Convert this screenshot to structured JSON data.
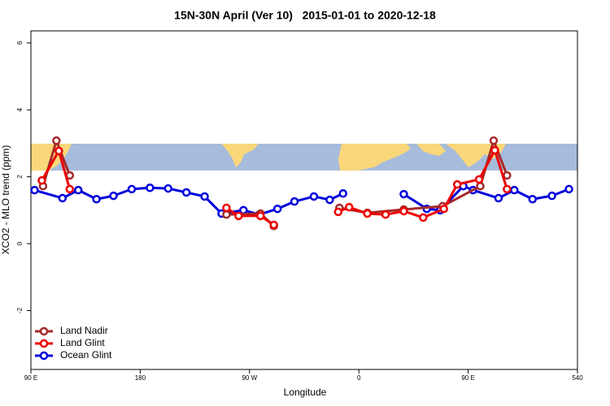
{
  "chart_data": {
    "type": "line",
    "title": "15N-30N April (Ver 10)   2015-01-01 to 2020-12-18",
    "x_label": "Longitude",
    "y_label": "XCO2 - MLO trend (ppm)",
    "xlim": [
      90,
      540
    ],
    "ylim": [
      -3.76,
      6.36
    ],
    "xticks": [
      {
        "value": 90,
        "label": "90 E"
      },
      180,
      {
        "value": 270,
        "label": "90 W"
      },
      {
        "value": 360,
        "label": "0"
      },
      {
        "value": 450,
        "label": "90 E"
      },
      540
    ],
    "yticks": [
      -2,
      0,
      2,
      4,
      6
    ],
    "grid": false,
    "legend": "bottomleft",
    "series": [
      {
        "name": "Land Nadir",
        "color": "#a52a2a",
        "x": [
          100,
          111,
          122,
          200,
          251,
          279,
          290,
          320,
          344,
          367,
          397,
          429,
          460,
          471,
          482
        ],
        "values": [
          1.72,
          3.08,
          2.04,
          null,
          0.87,
          0.9,
          0.53,
          null,
          1.07,
          0.92,
          1.02,
          1.12,
          1.72,
          3.08,
          2.04
        ]
      },
      {
        "name": "Land Glint",
        "color": "#ee0000",
        "x": [
          99,
          113,
          122,
          200,
          251,
          261,
          279,
          290,
          320,
          343,
          352,
          367,
          382,
          397,
          413,
          430,
          441,
          459,
          472,
          482
        ],
        "values": [
          1.89,
          2.77,
          1.63,
          null,
          1.07,
          0.83,
          0.83,
          0.56,
          null,
          0.95,
          1.09,
          0.9,
          0.87,
          0.97,
          0.78,
          1.04,
          1.77,
          1.92,
          2.79,
          1.63
        ]
      },
      {
        "name": "Ocean Glint",
        "color": "#0000dd",
        "x": [
          93,
          116,
          129,
          144,
          158,
          173,
          188,
          203,
          218,
          233,
          247,
          265,
          278,
          293,
          307,
          323,
          336,
          347,
          370,
          397,
          416,
          427,
          446,
          454,
          475,
          488,
          503,
          519,
          533
        ],
        "values": [
          1.6,
          1.36,
          1.6,
          1.33,
          1.43,
          1.63,
          1.67,
          1.65,
          1.53,
          1.41,
          0.9,
          1.0,
          0.87,
          1.04,
          1.26,
          1.41,
          1.31,
          1.5,
          null,
          1.48,
          1.04,
          1.0,
          1.72,
          1.6,
          1.36,
          1.6,
          1.33,
          1.43,
          1.63
        ]
      }
    ]
  }
}
